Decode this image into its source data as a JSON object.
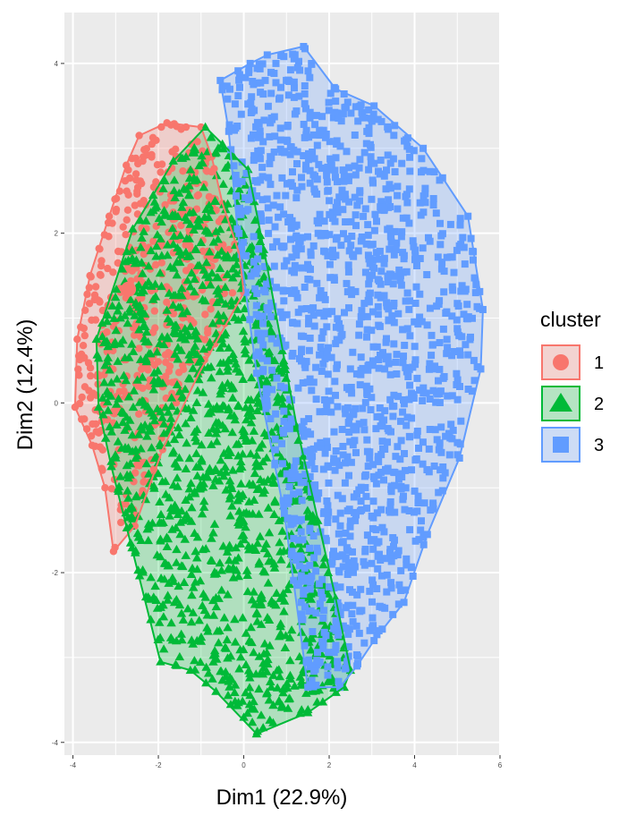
{
  "chart_data": {
    "type": "scatter",
    "xlabel": "Dim1 (22.9%)",
    "ylabel": "Dim2 (12.4%)",
    "xlim": [
      -4.2,
      6.0
    ],
    "ylim": [
      -4.15,
      4.6
    ],
    "x_ticks": [
      -4,
      -2,
      0,
      2,
      4,
      6
    ],
    "y_ticks": [
      -4,
      -2,
      0,
      2,
      4
    ],
    "x_tick_labels": [
      "-4",
      "-2",
      "0",
      "2",
      "4",
      "6"
    ],
    "y_tick_labels": [
      "-4",
      "-2",
      "0",
      "2",
      "4"
    ],
    "grid": true,
    "legend": {
      "title": "cluster",
      "position": "right"
    },
    "series": [
      {
        "name": "1",
        "color": "#F8766D",
        "marker": "circle",
        "centroid": [
          -2.7,
          1.34
        ],
        "hull": [
          [
            -1.8,
            3.3
          ],
          [
            -1.0,
            3.25
          ],
          [
            -0.75,
            2.9
          ],
          [
            -0.5,
            2.35
          ],
          [
            -0.1,
            1.75
          ],
          [
            0.0,
            1.3
          ],
          [
            -1.05,
            0.35
          ],
          [
            -1.9,
            -0.55
          ],
          [
            -2.55,
            -1.45
          ],
          [
            -3.05,
            -1.75
          ],
          [
            -3.25,
            -1.0
          ],
          [
            -3.55,
            -0.5
          ],
          [
            -3.95,
            -0.05
          ],
          [
            -3.9,
            0.75
          ],
          [
            -3.6,
            1.5
          ],
          [
            -3.15,
            2.2
          ],
          [
            -2.75,
            2.8
          ],
          [
            -2.45,
            3.15
          ]
        ]
      },
      {
        "name": "2",
        "color": "#00BA38",
        "marker": "triangle",
        "hull": [
          [
            -0.9,
            3.25
          ],
          [
            -0.5,
            3.05
          ],
          [
            0.1,
            2.75
          ],
          [
            0.55,
            1.6
          ],
          [
            1.25,
            -0.3
          ],
          [
            2.15,
            -2.3
          ],
          [
            2.5,
            -3.15
          ],
          [
            2.35,
            -3.35
          ],
          [
            1.5,
            -3.65
          ],
          [
            0.3,
            -3.9
          ],
          [
            -0.65,
            -3.4
          ],
          [
            -1.25,
            -3.15
          ],
          [
            -1.95,
            -3.05
          ],
          [
            -2.65,
            -1.65
          ],
          [
            -3.1,
            -0.75
          ],
          [
            -3.4,
            -0.05
          ],
          [
            -3.45,
            0.75
          ],
          [
            -2.6,
            2.05
          ],
          [
            -1.65,
            2.85
          ]
        ]
      },
      {
        "name": "3",
        "color": "#619CFF",
        "marker": "square",
        "hull": [
          [
            1.4,
            4.2
          ],
          [
            2.15,
            3.7
          ],
          [
            3.05,
            3.5
          ],
          [
            4.2,
            3.0
          ],
          [
            5.25,
            2.2
          ],
          [
            5.6,
            1.1
          ],
          [
            5.55,
            0.4
          ],
          [
            5.05,
            -0.65
          ],
          [
            4.3,
            -1.55
          ],
          [
            3.75,
            -2.35
          ],
          [
            3.05,
            -2.8
          ],
          [
            2.65,
            -3.1
          ],
          [
            2.25,
            -3.35
          ],
          [
            1.5,
            -3.35
          ],
          [
            0.95,
            -1.3
          ],
          [
            0.3,
            0.35
          ],
          [
            -0.15,
            2.05
          ],
          [
            -0.35,
            3.2
          ],
          [
            -0.55,
            3.8
          ],
          [
            0.15,
            4.0
          ],
          [
            0.55,
            4.1
          ]
        ]
      }
    ]
  }
}
